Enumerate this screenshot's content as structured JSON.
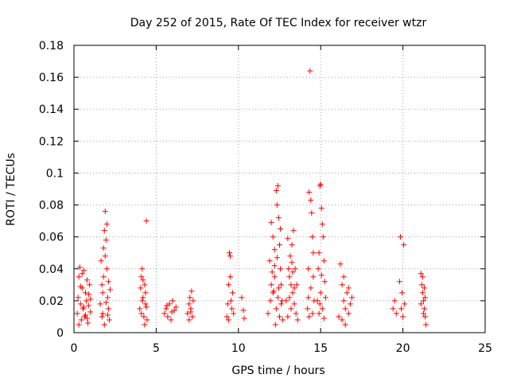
{
  "chart_data": {
    "type": "scatter",
    "title": "Day 252 of 2015, Rate Of TEC Index for receiver wtzr",
    "xlabel": "GPS time / hours",
    "ylabel": "ROTI / TECUs",
    "xlim": [
      0,
      25
    ],
    "ylim": [
      0,
      0.18
    ],
    "xticks": [
      0,
      5,
      10,
      15,
      20,
      25
    ],
    "xtick_labels": [
      "0",
      "5",
      "10",
      "15",
      "20",
      "25"
    ],
    "yticks": [
      0,
      0.02,
      0.04,
      0.06,
      0.08,
      0.1,
      0.12,
      0.14,
      0.16,
      0.18
    ],
    "ytick_labels": [
      "0",
      "0.02",
      "0.04",
      "0.06",
      "0.08",
      "0.1",
      "0.12",
      "0.14",
      "0.16",
      "0.18"
    ],
    "grid": true,
    "marker": "+",
    "color": "#ff0000",
    "series": [
      {
        "name": "ROTI",
        "points": [
          [
            0.2,
            0.012
          ],
          [
            0.25,
            0.022
          ],
          [
            0.3,
            0.035
          ],
          [
            0.35,
            0.041
          ],
          [
            0.4,
            0.018
          ],
          [
            0.45,
            0.008
          ],
          [
            0.5,
            0.028
          ],
          [
            0.55,
            0.015
          ],
          [
            0.6,
            0.039
          ],
          [
            0.65,
            0.01
          ],
          [
            0.7,
            0.025
          ],
          [
            0.75,
            0.02
          ],
          [
            0.8,
            0.033
          ],
          [
            0.85,
            0.006
          ],
          [
            0.9,
            0.017
          ],
          [
            0.95,
            0.03
          ],
          [
            1.0,
            0.013
          ],
          [
            0.3,
            0.005
          ],
          [
            0.5,
            0.037
          ],
          [
            0.7,
            0.011
          ],
          [
            0.9,
            0.024
          ],
          [
            0.4,
            0.029
          ],
          [
            0.6,
            0.016
          ],
          [
            0.8,
            0.009
          ],
          [
            1.0,
            0.021
          ],
          [
            1.6,
            0.018
          ],
          [
            1.65,
            0.045
          ],
          [
            1.7,
            0.03
          ],
          [
            1.75,
            0.012
          ],
          [
            1.8,
            0.053
          ],
          [
            1.85,
            0.064
          ],
          [
            1.9,
            0.076
          ],
          [
            1.95,
            0.058
          ],
          [
            2.0,
            0.04
          ],
          [
            2.05,
            0.022
          ],
          [
            2.1,
            0.015
          ],
          [
            2.15,
            0.008
          ],
          [
            2.2,
            0.027
          ],
          [
            1.7,
            0.01
          ],
          [
            1.8,
            0.035
          ],
          [
            1.9,
            0.048
          ],
          [
            2.0,
            0.068
          ],
          [
            2.1,
            0.032
          ],
          [
            1.75,
            0.025
          ],
          [
            1.95,
            0.019
          ],
          [
            2.05,
            0.011
          ],
          [
            1.85,
            0.005
          ],
          [
            4.0,
            0.015
          ],
          [
            4.05,
            0.028
          ],
          [
            4.1,
            0.035
          ],
          [
            4.15,
            0.04
          ],
          [
            4.2,
            0.022
          ],
          [
            4.25,
            0.01
          ],
          [
            4.3,
            0.03
          ],
          [
            4.35,
            0.018
          ],
          [
            4.4,
            0.07
          ],
          [
            4.45,
            0.008
          ],
          [
            4.1,
            0.012
          ],
          [
            4.2,
            0.033
          ],
          [
            4.3,
            0.005
          ],
          [
            4.35,
            0.025
          ],
          [
            4.15,
            0.02
          ],
          [
            4.4,
            0.016
          ],
          [
            5.5,
            0.012
          ],
          [
            5.6,
            0.015
          ],
          [
            5.7,
            0.01
          ],
          [
            5.8,
            0.018
          ],
          [
            5.9,
            0.008
          ],
          [
            6.0,
            0.02
          ],
          [
            6.1,
            0.014
          ],
          [
            6.2,
            0.016
          ],
          [
            5.65,
            0.017
          ],
          [
            5.95,
            0.013
          ],
          [
            6.9,
            0.012
          ],
          [
            7.0,
            0.018
          ],
          [
            7.05,
            0.022
          ],
          [
            7.1,
            0.015
          ],
          [
            7.15,
            0.026
          ],
          [
            7.2,
            0.01
          ],
          [
            7.25,
            0.02
          ],
          [
            7.0,
            0.008
          ],
          [
            7.1,
            0.013
          ],
          [
            9.3,
            0.01
          ],
          [
            9.35,
            0.018
          ],
          [
            9.4,
            0.03
          ],
          [
            9.45,
            0.05
          ],
          [
            9.5,
            0.048
          ],
          [
            9.55,
            0.02
          ],
          [
            9.6,
            0.015
          ],
          [
            9.65,
            0.025
          ],
          [
            9.7,
            0.012
          ],
          [
            9.4,
            0.008
          ],
          [
            9.5,
            0.035
          ],
          [
            10.2,
            0.022
          ],
          [
            10.3,
            0.014
          ],
          [
            10.35,
            0.009
          ],
          [
            11.8,
            0.012
          ],
          [
            11.9,
            0.045
          ],
          [
            12.0,
            0.069
          ],
          [
            12.1,
            0.06
          ],
          [
            12.2,
            0.052
          ],
          [
            12.3,
            0.089
          ],
          [
            12.35,
            0.08
          ],
          [
            12.4,
            0.092
          ],
          [
            12.45,
            0.072
          ],
          [
            12.5,
            0.055
          ],
          [
            12.55,
            0.04
          ],
          [
            12.6,
            0.03
          ],
          [
            12.65,
            0.02
          ],
          [
            12.0,
            0.03
          ],
          [
            12.1,
            0.025
          ],
          [
            12.2,
            0.035
          ],
          [
            12.3,
            0.015
          ],
          [
            12.4,
            0.022
          ],
          [
            12.5,
            0.01
          ],
          [
            12.6,
            0.018
          ],
          [
            12.7,
            0.008
          ],
          [
            12.2,
            0.042
          ],
          [
            12.45,
            0.028
          ],
          [
            12.55,
            0.065
          ],
          [
            11.95,
            0.02
          ],
          [
            12.05,
            0.038
          ],
          [
            12.25,
            0.005
          ],
          [
            12.35,
            0.047
          ],
          [
            12.15,
            0.026
          ],
          [
            12.9,
            0.02
          ],
          [
            13.0,
            0.059
          ],
          [
            13.05,
            0.04
          ],
          [
            13.1,
            0.035
          ],
          [
            13.15,
            0.048
          ],
          [
            13.2,
            0.03
          ],
          [
            13.25,
            0.055
          ],
          [
            13.3,
            0.025
          ],
          [
            13.35,
            0.064
          ],
          [
            13.4,
            0.018
          ],
          [
            13.45,
            0.04
          ],
          [
            13.5,
            0.012
          ],
          [
            13.55,
            0.03
          ],
          [
            13.6,
            0.008
          ],
          [
            13.1,
            0.022
          ],
          [
            13.2,
            0.015
          ],
          [
            13.3,
            0.038
          ],
          [
            13.0,
            0.01
          ],
          [
            13.4,
            0.028
          ],
          [
            13.25,
            0.044
          ],
          [
            14.2,
            0.015
          ],
          [
            14.25,
            0.04
          ],
          [
            14.3,
            0.088
          ],
          [
            14.35,
            0.164
          ],
          [
            14.4,
            0.083
          ],
          [
            14.45,
            0.075
          ],
          [
            14.5,
            0.06
          ],
          [
            14.55,
            0.035
          ],
          [
            14.6,
            0.02
          ],
          [
            14.3,
            0.01
          ],
          [
            14.4,
            0.028
          ],
          [
            14.5,
            0.012
          ],
          [
            14.55,
            0.05
          ],
          [
            14.25,
            0.022
          ],
          [
            14.8,
            0.02
          ],
          [
            14.85,
            0.04
          ],
          [
            14.9,
            0.05
          ],
          [
            14.95,
            0.092
          ],
          [
            15.0,
            0.093
          ],
          [
            15.05,
            0.078
          ],
          [
            15.1,
            0.068
          ],
          [
            15.15,
            0.06
          ],
          [
            15.2,
            0.045
          ],
          [
            15.25,
            0.032
          ],
          [
            14.9,
            0.012
          ],
          [
            15.0,
            0.025
          ],
          [
            15.1,
            0.015
          ],
          [
            15.2,
            0.009
          ],
          [
            15.3,
            0.022
          ],
          [
            15.05,
            0.036
          ],
          [
            14.95,
            0.018
          ],
          [
            16.1,
            0.01
          ],
          [
            16.2,
            0.043
          ],
          [
            16.3,
            0.03
          ],
          [
            16.4,
            0.02
          ],
          [
            16.5,
            0.015
          ],
          [
            16.6,
            0.025
          ],
          [
            16.7,
            0.012
          ],
          [
            16.8,
            0.018
          ],
          [
            16.9,
            0.022
          ],
          [
            16.3,
            0.008
          ],
          [
            16.5,
            0.005
          ],
          [
            16.7,
            0.028
          ],
          [
            16.4,
            0.035
          ],
          [
            19.4,
            0.015
          ],
          [
            19.5,
            0.02
          ],
          [
            19.6,
            0.012
          ],
          [
            19.8,
            0.032
          ],
          [
            19.85,
            0.06
          ],
          [
            19.9,
            0.015
          ],
          [
            20.0,
            0.01
          ],
          [
            20.05,
            0.055
          ],
          [
            20.1,
            0.018
          ],
          [
            19.95,
            0.025
          ],
          [
            21.1,
            0.037
          ],
          [
            21.15,
            0.03
          ],
          [
            21.2,
            0.025
          ],
          [
            21.25,
            0.02
          ],
          [
            21.3,
            0.015
          ],
          [
            21.35,
            0.01
          ],
          [
            21.4,
            0.005
          ],
          [
            21.2,
            0.035
          ],
          [
            21.3,
            0.028
          ],
          [
            21.1,
            0.018
          ],
          [
            21.25,
            0.012
          ],
          [
            21.35,
            0.022
          ]
        ]
      }
    ]
  }
}
